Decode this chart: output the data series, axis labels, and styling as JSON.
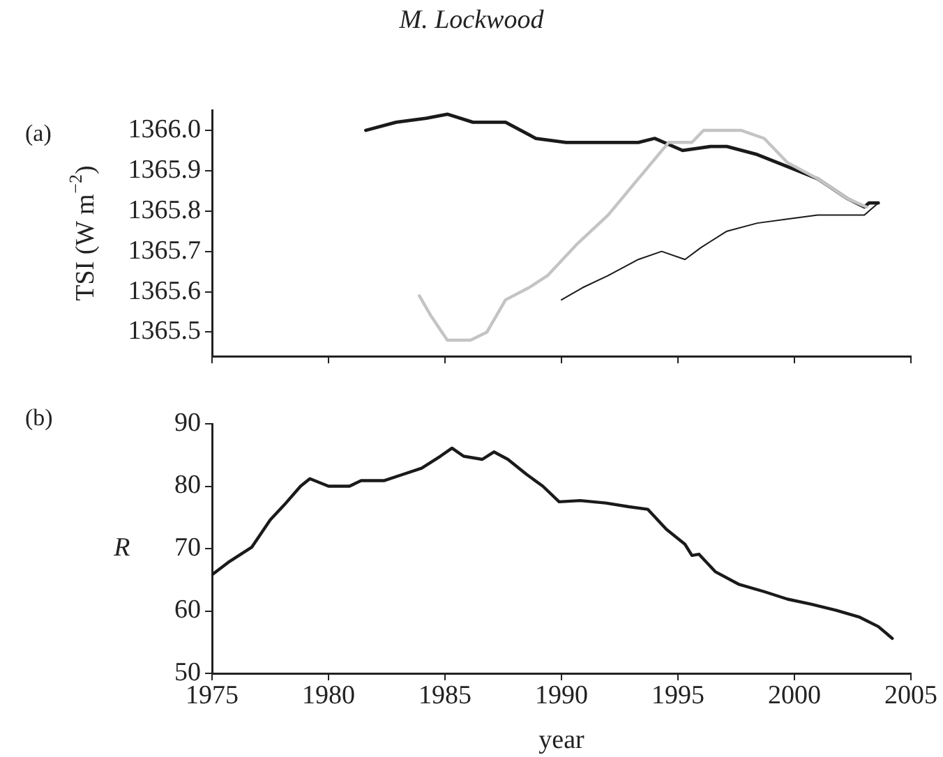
{
  "chart_data": [
    {
      "type": "line",
      "title": "M. Lockwood",
      "ylabel": "TSI (W m$^{−2}$)",
      "annotations": [
        "(a)"
      ],
      "marker": "none",
      "legend": false,
      "grid": false,
      "tick_labels": "y",
      "xlim": [
        1975,
        2005
      ],
      "xticks": [
        1975,
        1980,
        1985,
        1990,
        1995,
        2000,
        2005
      ],
      "ylim": [
        1365.44,
        1366.05
      ],
      "yticks": [
        {
          "value": 1365.5,
          "label": "1365.5"
        },
        {
          "value": 1365.6,
          "label": "1365.6"
        },
        {
          "value": 1365.7,
          "label": "1365.7"
        },
        {
          "value": 1365.8,
          "label": "1365.8"
        },
        {
          "value": 1365.9,
          "label": "1365.9"
        },
        {
          "value": 1366.0,
          "label": "1366.0"
        }
      ],
      "series": [
        {
          "color": "#c4c4c4",
          "x": [
            1983.9,
            1984.4,
            1985.1,
            1986.1,
            1986.8,
            1987.6,
            1988.6,
            1989.4,
            1990.7,
            1992.0,
            1993.3,
            1994.6,
            1995.6,
            1996.1,
            1996.9,
            1997.7,
            1998.7,
            1999.7,
            2001.0,
            2002.3,
            2003.1
          ],
          "values": [
            1365.59,
            1365.54,
            1365.48,
            1365.48,
            1365.5,
            1365.58,
            1365.61,
            1365.64,
            1365.72,
            1365.79,
            1365.88,
            1365.97,
            1365.97,
            1366.0,
            1366.0,
            1366.0,
            1365.98,
            1365.92,
            1365.88,
            1365.83,
            1365.81
          ]
        },
        {
          "color": "#1a1a1a",
          "x": [
            1981.6,
            1982.9,
            1984.2,
            1985.1,
            1986.2,
            1987.6,
            1988.9,
            1990.2,
            1992.0,
            1993.3,
            1994.0,
            1995.2,
            1996.4,
            1997.1,
            1998.4,
            1999.7,
            2001.0,
            2002.3,
            2003.0,
            2003.2,
            2003.6
          ],
          "values": [
            1366.0,
            1366.02,
            1366.03,
            1366.04,
            1366.02,
            1366.02,
            1365.98,
            1365.97,
            1365.97,
            1365.97,
            1365.98,
            1365.95,
            1365.96,
            1365.96,
            1365.94,
            1365.91,
            1365.88,
            1365.83,
            1365.81,
            1365.82,
            1365.82
          ]
        },
        {
          "color": "#1a1a1a",
          "x": [
            1990.0,
            1990.9,
            1992.0,
            1993.3,
            1994.3,
            1995.3,
            1996.0,
            1997.1,
            1998.4,
            1999.7,
            2001.0,
            2002.3,
            2003.0,
            2003.6
          ],
          "values": [
            1365.58,
            1365.61,
            1365.64,
            1365.68,
            1365.7,
            1365.68,
            1365.71,
            1365.75,
            1365.77,
            1365.78,
            1365.79,
            1365.79,
            1365.79,
            1365.82
          ]
        }
      ]
    },
    {
      "type": "line",
      "ylabel": "R",
      "xlabel": "year",
      "annotations": [
        "(b)"
      ],
      "marker": "none",
      "legend": false,
      "grid": false,
      "xlim": [
        1975,
        2005
      ],
      "xticks": [
        1975,
        1980,
        1985,
        1990,
        1995,
        2000,
        2005
      ],
      "ylim": [
        50,
        90
      ],
      "yticks": [
        50,
        60,
        70,
        80,
        90
      ],
      "series": [
        {
          "color": "#1a1a1a",
          "x": [
            1975.0,
            1975.7,
            1976.7,
            1977.5,
            1978.1,
            1978.8,
            1979.2,
            1980.0,
            1980.9,
            1981.4,
            1982.4,
            1983.2,
            1984.0,
            1984.8,
            1985.3,
            1985.8,
            1986.6,
            1987.1,
            1987.7,
            1988.5,
            1989.2,
            1989.9,
            1990.8,
            1991.9,
            1992.9,
            1993.7,
            1994.5,
            1995.3,
            1995.6,
            1995.9,
            1996.6,
            1997.6,
            1998.7,
            1999.7,
            2000.7,
            2001.8,
            2002.8,
            2003.6,
            2004.2
          ],
          "values": [
            65.8,
            67.8,
            70.2,
            74.6,
            77.0,
            80.0,
            81.2,
            80.0,
            80.0,
            80.9,
            80.9,
            81.9,
            82.9,
            84.8,
            86.1,
            84.8,
            84.3,
            85.5,
            84.3,
            81.9,
            80.0,
            77.5,
            77.7,
            77.3,
            76.7,
            76.3,
            73.1,
            70.7,
            68.9,
            69.1,
            66.3,
            64.3,
            63.1,
            61.9,
            61.1,
            60.1,
            59.0,
            57.5,
            55.6
          ]
        }
      ]
    }
  ]
}
